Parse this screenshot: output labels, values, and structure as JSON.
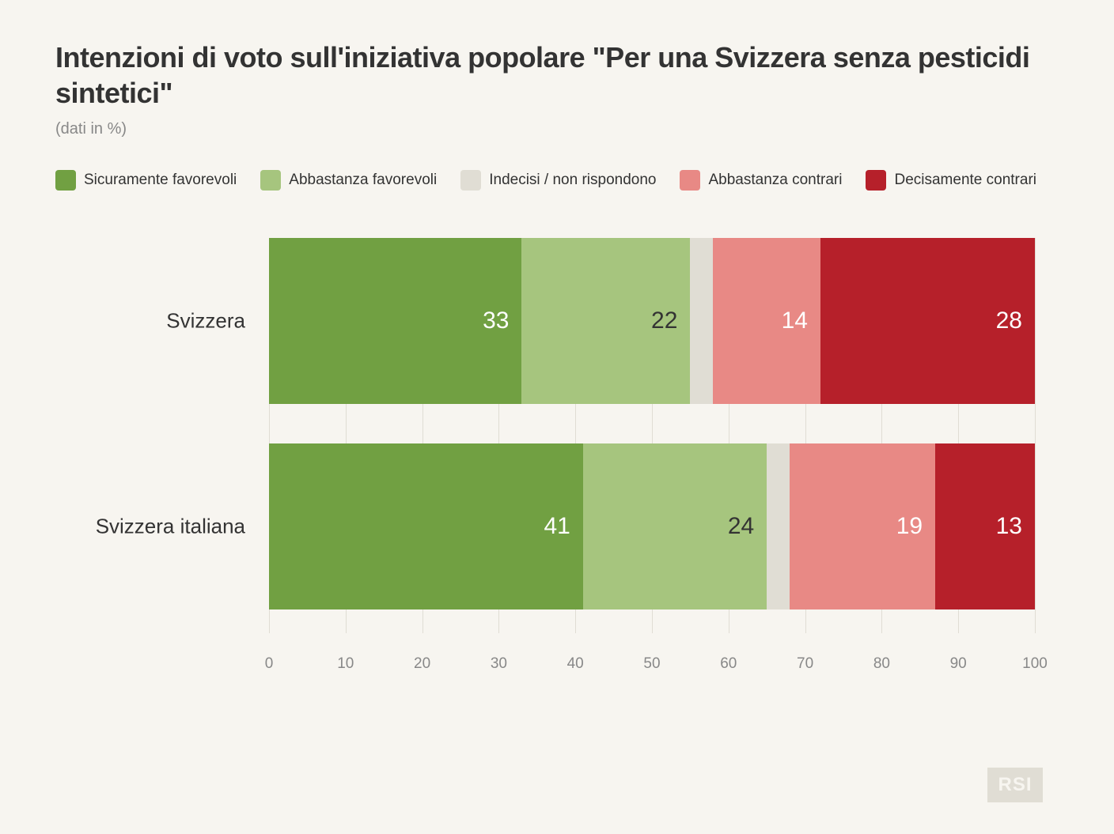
{
  "title": "Intenzioni di voto sull'iniziativa popolare \"Per una Svizzera senza pesticidi sintetici\"",
  "subtitle": "(dati in %)",
  "colors": {
    "strong_fav": "#71a042",
    "some_fav": "#a6c57e",
    "undecided": "#e0ddd4",
    "some_against": "#e88985",
    "strong_against": "#b6202a",
    "background": "#f7f5f0",
    "grid": "#e0ddd4",
    "text": "#333333",
    "muted": "#888888"
  },
  "legend": [
    {
      "label": "Sicuramente favorevoli",
      "color_key": "strong_fav"
    },
    {
      "label": "Abbastanza favorevoli",
      "color_key": "some_fav"
    },
    {
      "label": "Indecisi / non rispondono",
      "color_key": "undecided"
    },
    {
      "label": "Abbastanza contrari",
      "color_key": "some_against"
    },
    {
      "label": "Decisamente contrari",
      "color_key": "strong_against"
    }
  ],
  "chart": {
    "type": "stacked_bar_horizontal",
    "xmin": 0,
    "xmax": 100,
    "xtick_step": 10,
    "bar_label_fontsize": 30,
    "axis_fontsize": 19,
    "category_fontsize": 26,
    "rows": [
      {
        "label": "Svizzera",
        "segments": [
          {
            "value": 33,
            "color_key": "strong_fav",
            "show_label": true,
            "text": "white"
          },
          {
            "value": 22,
            "color_key": "some_fav",
            "show_label": true,
            "text": "dark"
          },
          {
            "value": 3,
            "color_key": "undecided",
            "show_label": false
          },
          {
            "value": 14,
            "color_key": "some_against",
            "show_label": true,
            "text": "white"
          },
          {
            "value": 28,
            "color_key": "strong_against",
            "show_label": true,
            "text": "white"
          }
        ]
      },
      {
        "label": "Svizzera italiana",
        "segments": [
          {
            "value": 41,
            "color_key": "strong_fav",
            "show_label": true,
            "text": "white"
          },
          {
            "value": 24,
            "color_key": "some_fav",
            "show_label": true,
            "text": "dark"
          },
          {
            "value": 3,
            "color_key": "undecided",
            "show_label": false
          },
          {
            "value": 19,
            "color_key": "some_against",
            "show_label": true,
            "text": "white"
          },
          {
            "value": 13,
            "color_key": "strong_against",
            "show_label": true,
            "text": "white"
          }
        ]
      }
    ]
  },
  "logo": "RSI"
}
